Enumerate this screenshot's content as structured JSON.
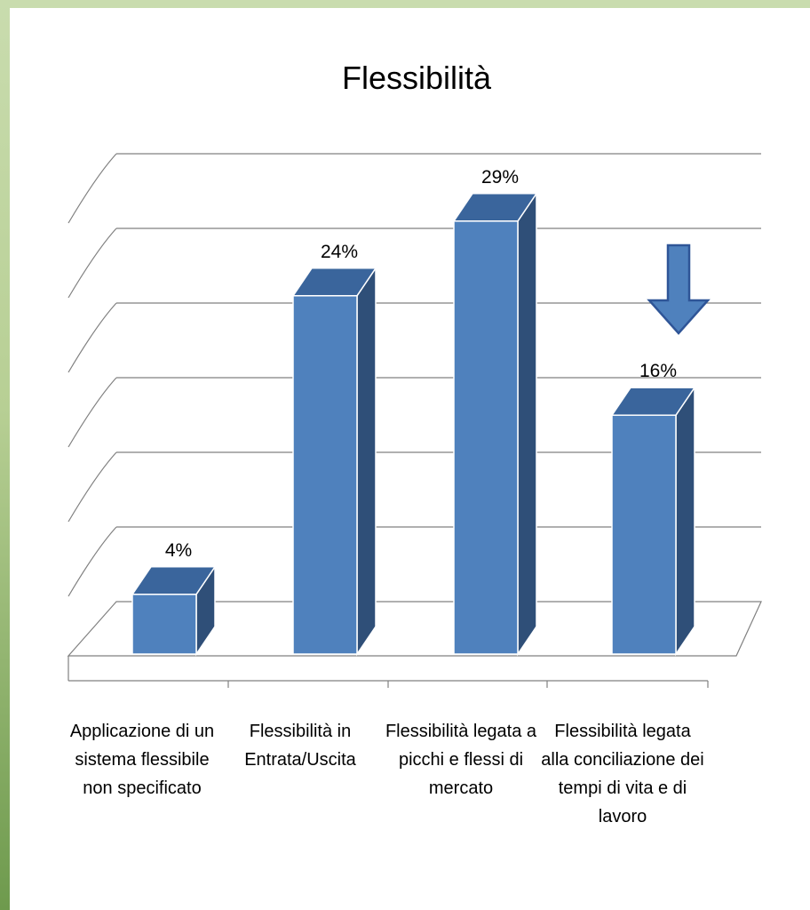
{
  "chart_data": {
    "type": "bar",
    "title": "Flessibilità",
    "categories": [
      "Applicazione di un sistema flessibile non specificato",
      "Flessibilità in Entrata/Uscita",
      "Flessibilità legata a picchi e flessi di mercato",
      "Flessibilità legata alla conciliazione dei tempi di vita e di lavoro"
    ],
    "category_lines": [
      [
        "Applicazione di un",
        "sistema flessibile",
        "non specificato"
      ],
      [
        "Flessibilità  in",
        "Entrata/Uscita"
      ],
      [
        "Flessibilità  legata a",
        "picchi e flessi di",
        "mercato"
      ],
      [
        "Flessibilità  legata",
        "alla conciliazione dei",
        "tempi di vita e di",
        "lavoro"
      ]
    ],
    "values": [
      4,
      24,
      29,
      16
    ],
    "data_labels": [
      "4%",
      "24%",
      "29%",
      "16%"
    ],
    "unit": "%",
    "ylim": [
      0,
      30
    ],
    "grid": true,
    "style": "3d-column",
    "colors": {
      "bar_front": "#4f81bd",
      "bar_side": "#2f4f78",
      "bar_top": "#3a659c",
      "arrow": "#4f81bd"
    },
    "annotation": {
      "icon": "down-arrow-icon"
    }
  }
}
